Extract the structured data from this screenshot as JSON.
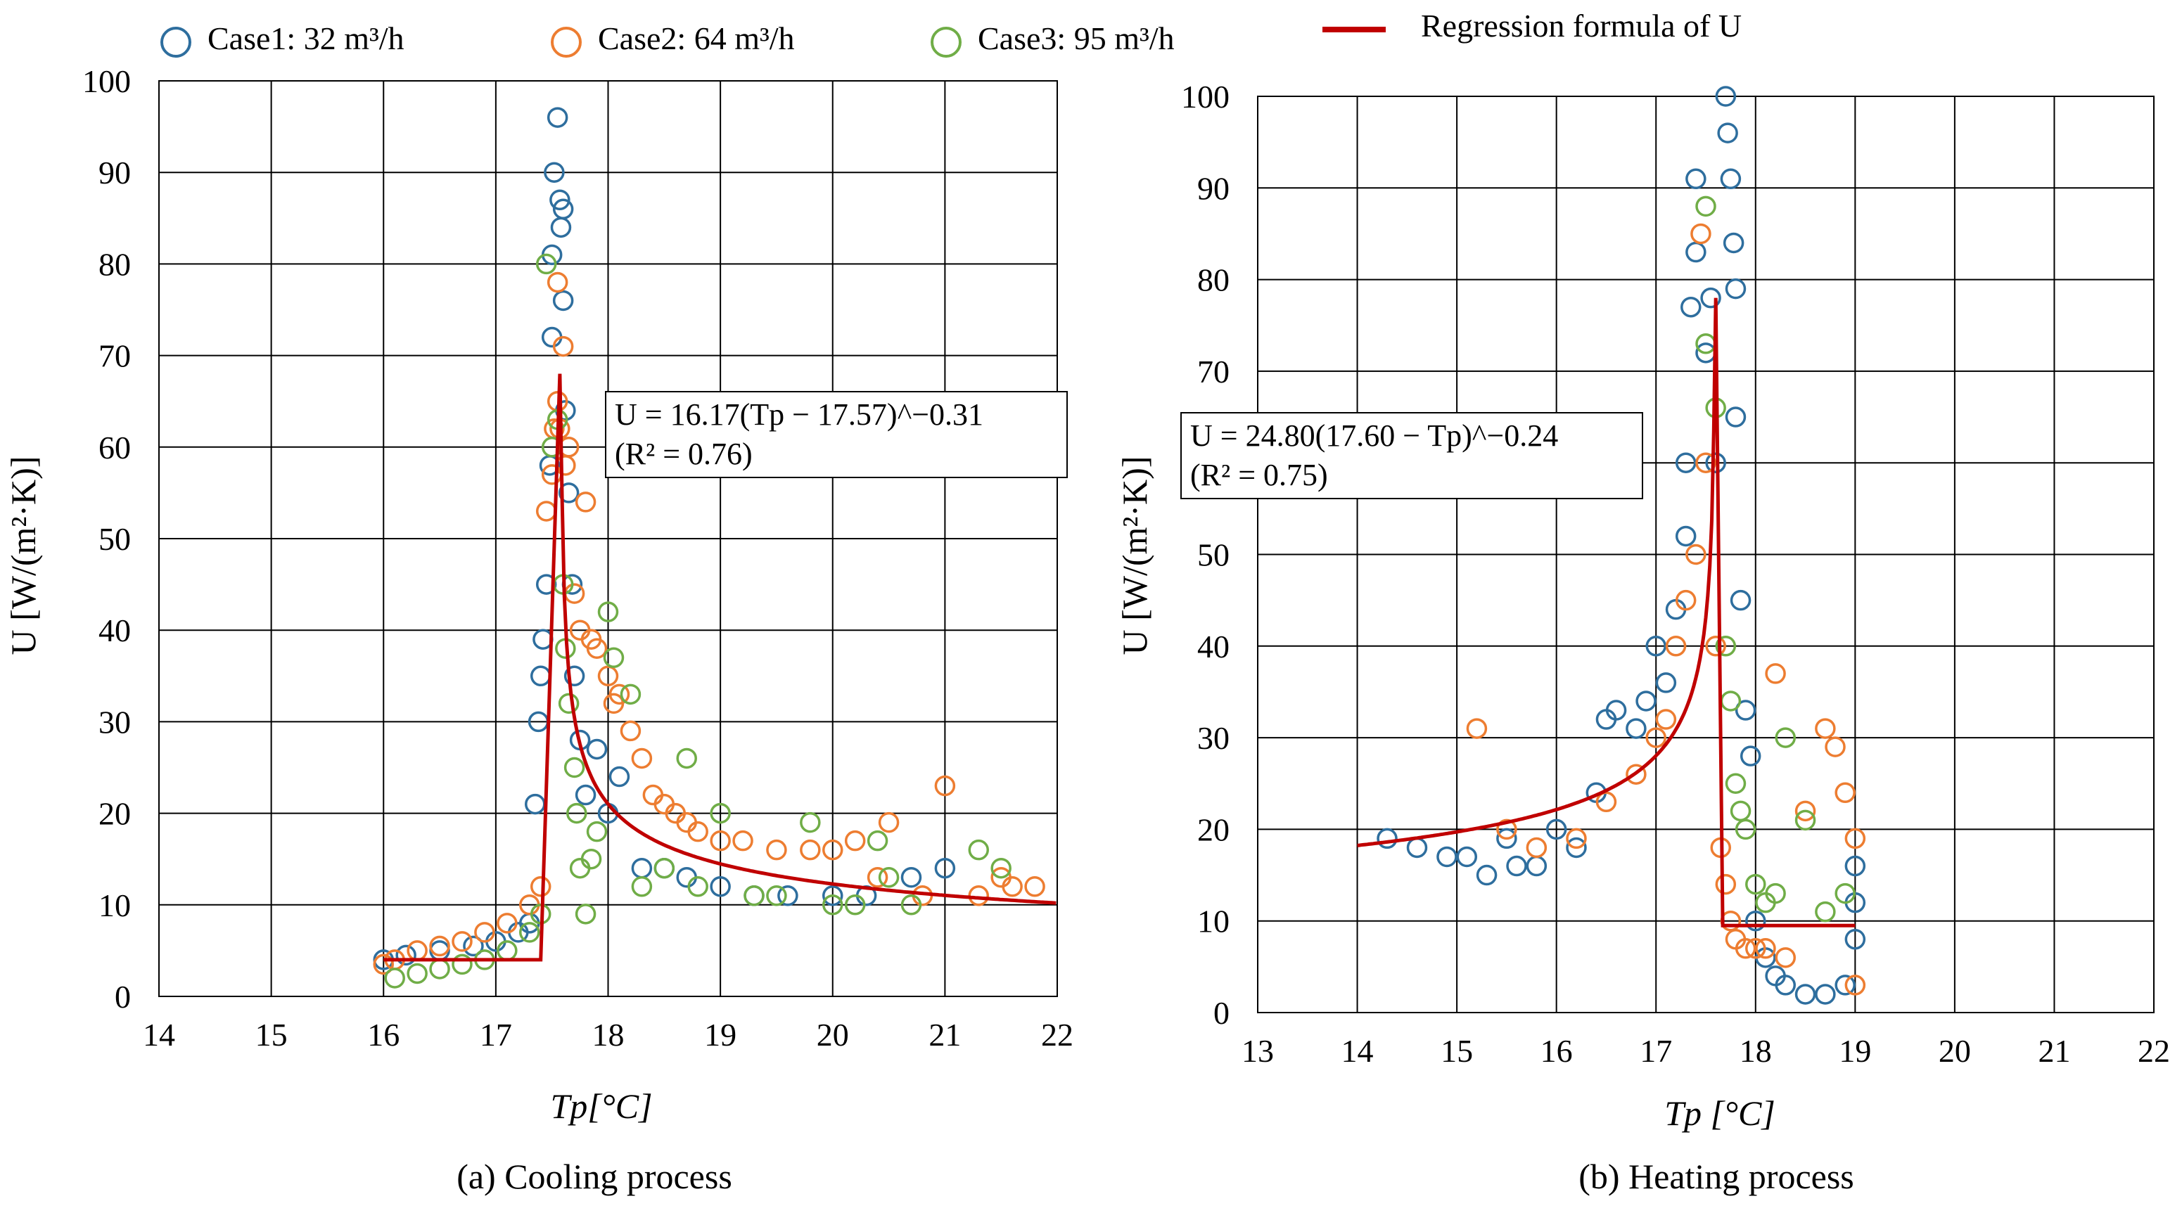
{
  "legend": {
    "entries": [
      {
        "label": "Case1: 32 m³/h",
        "marker": "circle",
        "color": "#2E6E9E"
      },
      {
        "label": "Case2: 64 m³/h",
        "marker": "circle",
        "color": "#ED7D31"
      },
      {
        "label": "Case3: 95 m³/h",
        "marker": "circle",
        "color": "#70AD47"
      },
      {
        "label": "Regression formula of U",
        "marker": "line",
        "color": "#C00000"
      }
    ]
  },
  "chart_data": [
    {
      "type": "scatter",
      "id": "cooling",
      "caption": "(a) Cooling process",
      "xlabel": "Tp[°C]",
      "ylabel": "U [W/(m²·K)]",
      "xlim": [
        14,
        22
      ],
      "ylim": [
        0,
        100
      ],
      "xticks": [
        14,
        15,
        16,
        17,
        18,
        19,
        20,
        21,
        22
      ],
      "yticks": [
        0,
        10,
        20,
        30,
        40,
        50,
        60,
        70,
        80,
        90,
        100
      ],
      "grid": true,
      "annotation": {
        "equation": "U = 16.17(Tp − 17.57)^−0.31",
        "r2": "(R² = 0.76)"
      },
      "regression": {
        "flat_value": 4,
        "flat_from": 16,
        "flat_to": 17.4,
        "peak_x": 17.57,
        "peak_value": 68,
        "a": 16.17,
        "b": -0.31,
        "t0": 17.57,
        "x_end": 22
      },
      "series": [
        {
          "name": "Case1: 32 m³/h",
          "color": "#2E6E9E",
          "points": [
            [
              16.0,
              4
            ],
            [
              16.2,
              4.5
            ],
            [
              16.5,
              5
            ],
            [
              16.8,
              5.5
            ],
            [
              17.0,
              6
            ],
            [
              17.2,
              7
            ],
            [
              17.3,
              8
            ],
            [
              17.35,
              21
            ],
            [
              17.38,
              30
            ],
            [
              17.4,
              35
            ],
            [
              17.42,
              39
            ],
            [
              17.45,
              45
            ],
            [
              17.48,
              58
            ],
            [
              17.5,
              72
            ],
            [
              17.5,
              81
            ],
            [
              17.52,
              90
            ],
            [
              17.55,
              96
            ],
            [
              17.57,
              87
            ],
            [
              17.58,
              84
            ],
            [
              17.6,
              86
            ],
            [
              17.6,
              76
            ],
            [
              17.62,
              64
            ],
            [
              17.65,
              55
            ],
            [
              17.68,
              45
            ],
            [
              17.7,
              35
            ],
            [
              17.75,
              28
            ],
            [
              17.8,
              22
            ],
            [
              17.9,
              27
            ],
            [
              18.0,
              20
            ],
            [
              18.1,
              24
            ],
            [
              18.3,
              14
            ],
            [
              18.5,
              14
            ],
            [
              18.7,
              13
            ],
            [
              19.0,
              12
            ],
            [
              19.3,
              11
            ],
            [
              19.6,
              11
            ],
            [
              20.0,
              11
            ],
            [
              20.3,
              11
            ],
            [
              20.7,
              13
            ],
            [
              21.0,
              14
            ]
          ]
        },
        {
          "name": "Case2: 64 m³/h",
          "color": "#ED7D31",
          "points": [
            [
              16.0,
              3.5
            ],
            [
              16.1,
              4
            ],
            [
              16.3,
              5
            ],
            [
              16.5,
              5.5
            ],
            [
              16.7,
              6
            ],
            [
              16.9,
              7
            ],
            [
              17.1,
              8
            ],
            [
              17.3,
              10
            ],
            [
              17.4,
              12
            ],
            [
              17.45,
              53
            ],
            [
              17.5,
              57
            ],
            [
              17.52,
              62
            ],
            [
              17.55,
              65
            ],
            [
              17.55,
              78
            ],
            [
              17.57,
              62
            ],
            [
              17.6,
              71
            ],
            [
              17.62,
              58
            ],
            [
              17.65,
              60
            ],
            [
              17.7,
              44
            ],
            [
              17.75,
              40
            ],
            [
              17.8,
              54
            ],
            [
              17.85,
              39
            ],
            [
              17.9,
              38
            ],
            [
              18.0,
              35
            ],
            [
              18.05,
              32
            ],
            [
              18.1,
              33
            ],
            [
              18.2,
              29
            ],
            [
              18.3,
              26
            ],
            [
              18.4,
              22
            ],
            [
              18.5,
              21
            ],
            [
              18.6,
              20
            ],
            [
              18.7,
              19
            ],
            [
              18.8,
              18
            ],
            [
              19.0,
              17
            ],
            [
              19.2,
              17
            ],
            [
              19.5,
              16
            ],
            [
              19.8,
              16
            ],
            [
              20.0,
              16
            ],
            [
              20.2,
              17
            ],
            [
              20.4,
              13
            ],
            [
              20.5,
              19
            ],
            [
              20.8,
              11
            ],
            [
              21.0,
              23
            ],
            [
              21.3,
              11
            ],
            [
              21.5,
              13
            ],
            [
              21.6,
              12
            ],
            [
              21.8,
              12
            ]
          ]
        },
        {
          "name": "Case3: 95 m³/h",
          "color": "#70AD47",
          "points": [
            [
              16.1,
              2
            ],
            [
              16.3,
              2.5
            ],
            [
              16.5,
              3
            ],
            [
              16.7,
              3.5
            ],
            [
              16.9,
              4
            ],
            [
              17.1,
              5
            ],
            [
              17.3,
              7
            ],
            [
              17.4,
              9
            ],
            [
              17.45,
              80
            ],
            [
              17.5,
              60
            ],
            [
              17.55,
              63
            ],
            [
              17.6,
              45
            ],
            [
              17.62,
              38
            ],
            [
              17.65,
              32
            ],
            [
              17.7,
              25
            ],
            [
              17.72,
              20
            ],
            [
              17.75,
              14
            ],
            [
              17.8,
              9
            ],
            [
              17.85,
              15
            ],
            [
              17.9,
              18
            ],
            [
              18.0,
              42
            ],
            [
              18.05,
              37
            ],
            [
              18.2,
              33
            ],
            [
              18.3,
              12
            ],
            [
              18.5,
              14
            ],
            [
              18.7,
              26
            ],
            [
              18.8,
              12
            ],
            [
              19.0,
              20
            ],
            [
              19.3,
              11
            ],
            [
              19.5,
              11
            ],
            [
              19.8,
              19
            ],
            [
              20.0,
              10
            ],
            [
              20.2,
              10
            ],
            [
              20.4,
              17
            ],
            [
              20.5,
              13
            ],
            [
              20.7,
              10
            ],
            [
              21.3,
              16
            ],
            [
              21.5,
              14
            ]
          ]
        }
      ]
    },
    {
      "type": "scatter",
      "id": "heating",
      "caption": "(b) Heating process",
      "xlabel": "Tp [°C]",
      "ylabel": "U [W/(m²·K)]",
      "xlim": [
        13,
        22
      ],
      "ylim": [
        0,
        100
      ],
      "xticks": [
        13,
        14,
        15,
        16,
        17,
        18,
        19,
        20,
        21,
        22
      ],
      "yticks": [
        0,
        10,
        20,
        30,
        40,
        50,
        60,
        70,
        80,
        90,
        100
      ],
      "grid": true,
      "annotation": {
        "equation": "U = 24.80(17.60 − Tp)^−0.24",
        "r2": "(R² = 0.75)"
      },
      "regression": {
        "a": 24.8,
        "b": -0.24,
        "t0": 17.6,
        "x_start": 14,
        "peak_x": 17.6,
        "peak_value": 78,
        "drop_x": 17.67,
        "flat_value": 9.5,
        "flat_to": 19
      },
      "series": [
        {
          "name": "Case1: 32 m³/h",
          "color": "#2E6E9E",
          "points": [
            [
              14.3,
              19
            ],
            [
              14.6,
              18
            ],
            [
              14.9,
              17
            ],
            [
              15.1,
              17
            ],
            [
              15.3,
              15
            ],
            [
              15.5,
              19
            ],
            [
              15.6,
              16
            ],
            [
              15.8,
              16
            ],
            [
              16.0,
              20
            ],
            [
              16.2,
              18
            ],
            [
              16.4,
              24
            ],
            [
              16.5,
              32
            ],
            [
              16.6,
              33
            ],
            [
              16.8,
              31
            ],
            [
              16.9,
              34
            ],
            [
              17.0,
              40
            ],
            [
              17.1,
              36
            ],
            [
              17.2,
              44
            ],
            [
              17.3,
              52
            ],
            [
              17.3,
              60
            ],
            [
              17.35,
              77
            ],
            [
              17.4,
              91
            ],
            [
              17.4,
              83
            ],
            [
              17.5,
              72
            ],
            [
              17.55,
              78
            ],
            [
              17.6,
              60
            ],
            [
              17.7,
              100
            ],
            [
              17.72,
              96
            ],
            [
              17.75,
              91
            ],
            [
              17.78,
              84
            ],
            [
              17.8,
              79
            ],
            [
              17.8,
              65
            ],
            [
              17.85,
              45
            ],
            [
              17.9,
              33
            ],
            [
              17.95,
              28
            ],
            [
              18.0,
              10
            ],
            [
              18.1,
              6
            ],
            [
              18.2,
              4
            ],
            [
              18.3,
              3
            ],
            [
              18.5,
              2
            ],
            [
              18.7,
              2
            ],
            [
              18.9,
              3
            ],
            [
              19.0,
              8
            ],
            [
              19.0,
              12
            ],
            [
              19.0,
              16
            ]
          ]
        },
        {
          "name": "Case2: 64 m³/h",
          "color": "#ED7D31",
          "points": [
            [
              15.2,
              31
            ],
            [
              15.5,
              20
            ],
            [
              15.8,
              18
            ],
            [
              16.2,
              19
            ],
            [
              16.5,
              23
            ],
            [
              16.8,
              26
            ],
            [
              17.0,
              30
            ],
            [
              17.1,
              32
            ],
            [
              17.2,
              40
            ],
            [
              17.3,
              45
            ],
            [
              17.4,
              50
            ],
            [
              17.45,
              85
            ],
            [
              17.5,
              60
            ],
            [
              17.6,
              40
            ],
            [
              17.65,
              18
            ],
            [
              17.7,
              14
            ],
            [
              17.75,
              10
            ],
            [
              17.8,
              8
            ],
            [
              17.9,
              7
            ],
            [
              18.0,
              7
            ],
            [
              18.1,
              7
            ],
            [
              18.2,
              37
            ],
            [
              18.3,
              6
            ],
            [
              18.5,
              22
            ],
            [
              18.7,
              31
            ],
            [
              18.8,
              29
            ],
            [
              18.9,
              24
            ],
            [
              19.0,
              19
            ],
            [
              19.0,
              3
            ]
          ]
        },
        {
          "name": "Case3: 95 m³/h",
          "color": "#70AD47",
          "points": [
            [
              17.5,
              88
            ],
            [
              17.5,
              73
            ],
            [
              17.6,
              66
            ],
            [
              17.7,
              40
            ],
            [
              17.75,
              34
            ],
            [
              17.8,
              25
            ],
            [
              17.85,
              22
            ],
            [
              17.9,
              20
            ],
            [
              18.0,
              14
            ],
            [
              18.1,
              12
            ],
            [
              18.2,
              13
            ],
            [
              18.3,
              30
            ],
            [
              18.5,
              21
            ],
            [
              18.7,
              11
            ],
            [
              18.9,
              13
            ]
          ]
        }
      ]
    }
  ]
}
